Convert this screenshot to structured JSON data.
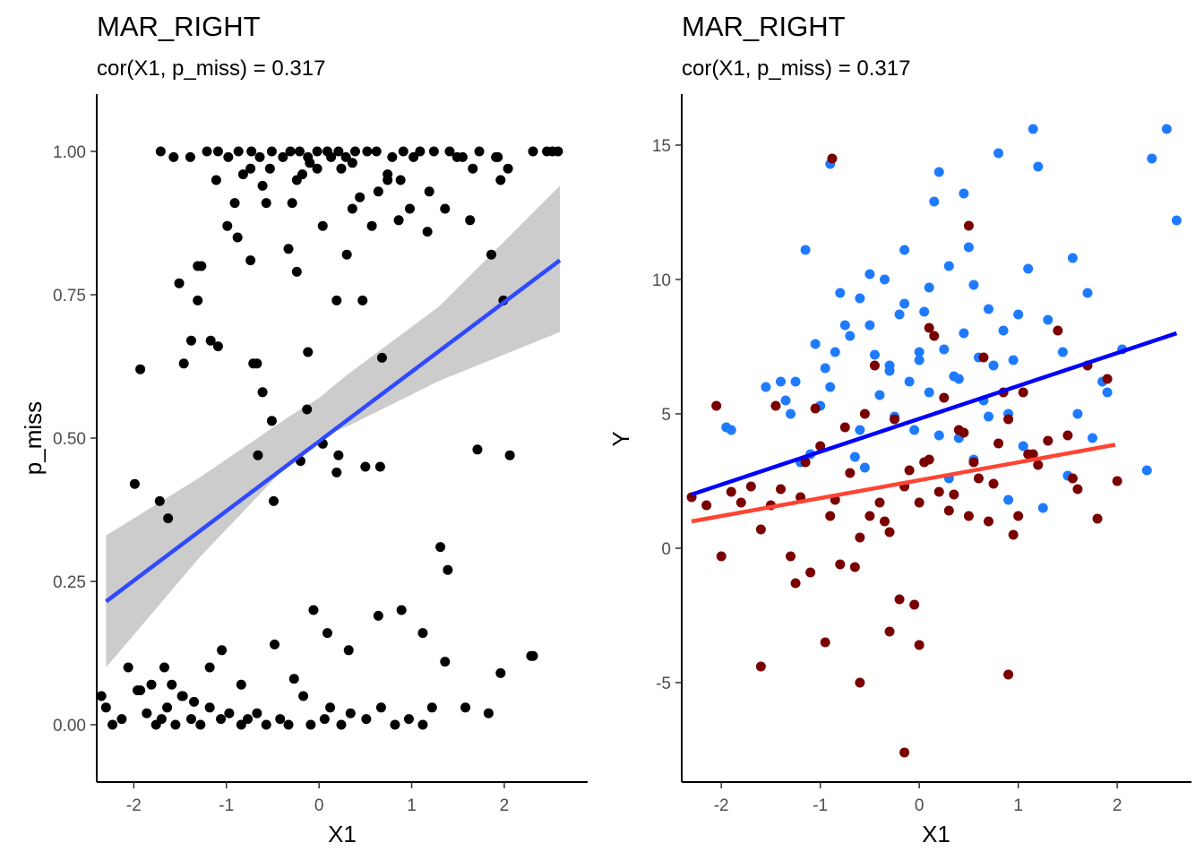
{
  "chart_data": [
    {
      "type": "scatter",
      "title": "MAR_RIGHT",
      "subtitle": "cor(X1, p_miss) = 0.317",
      "xlabel": "X1",
      "ylabel": "p_miss",
      "xlim": [
        -2.4,
        2.9
      ],
      "ylim": [
        -0.1,
        1.1
      ],
      "x_ticks": [
        -2,
        -1,
        0,
        1,
        2
      ],
      "x_tick_labels": [
        "-2",
        "-1",
        "0",
        "1",
        "2"
      ],
      "y_ticks": [
        0,
        0.25,
        0.5,
        0.75,
        1
      ],
      "y_tick_labels": [
        "0.00",
        "0.25",
        "0.50",
        "0.75",
        "1.00"
      ],
      "grid": false,
      "colors": {
        "points": "#000000",
        "fit_line": "#3049FF",
        "ribbon": "#CCCCCC"
      },
      "fit_line": {
        "x": [
          -2.3,
          2.6
        ],
        "y": [
          0.215,
          0.81
        ]
      },
      "confidence_band": {
        "x": [
          -2.3,
          -1.3,
          -0.3,
          0.0,
          0.3,
          1.3,
          2.6
        ],
        "lower": [
          0.1,
          0.29,
          0.46,
          0.5,
          0.52,
          0.6,
          0.685
        ],
        "upper": [
          0.33,
          0.43,
          0.54,
          0.57,
          0.61,
          0.73,
          0.94
        ]
      },
      "points": {
        "x": [
          -1.99,
          -1.72,
          -1.63,
          -1.93,
          -1.09,
          -0.71,
          -0.66,
          -0.61,
          -0.51,
          -0.49,
          -0.2,
          -0.13,
          0.04,
          0.19,
          0.21,
          0.5,
          0.66,
          0.68,
          1.31,
          1.39,
          1.71,
          1.86,
          1.99,
          2.06,
          2.31,
          -2.35,
          -2.3,
          -2.23,
          -2.13,
          -1.93,
          -1.86,
          -1.81,
          -1.76,
          -1.7,
          -1.64,
          -1.55,
          -1.48,
          -1.38,
          -1.28,
          -1.18,
          -1.06,
          -0.97,
          -0.84,
          -0.77,
          -0.67,
          -0.57,
          -0.42,
          -0.33,
          -0.17,
          -0.09,
          0.06,
          0.12,
          0.24,
          0.34,
          0.51,
          0.67,
          0.82,
          0.97,
          1.12,
          1.22,
          1.36,
          1.58,
          1.83,
          1.96,
          2.29,
          -2.06,
          -1.96,
          -1.67,
          -1.59,
          -1.47,
          -1.35,
          -1.18,
          -1.05,
          -0.84,
          -0.48,
          -0.27,
          -0.06,
          0.09,
          0.32,
          0.64,
          0.89,
          1.12,
          -1.51,
          -1.46,
          -1.38,
          -1.31,
          -1.27,
          -1.17,
          -0.99,
          -0.88,
          -0.74,
          -0.67,
          -0.57,
          -0.33,
          -0.29,
          -0.24,
          -0.12,
          0.04,
          0.19,
          0.3,
          0.36,
          0.47,
          0.57,
          0.74,
          0.86,
          0.98,
          1.17,
          1.36,
          1.63,
          1.96,
          2.04,
          -1.31,
          -1.11,
          -0.91,
          -0.82,
          -0.74,
          -0.61,
          -0.53,
          -0.24,
          -0.18,
          -0.1,
          -0.02,
          0.13,
          0.24,
          0.36,
          0.44,
          0.64,
          0.74,
          0.88,
          1.02,
          1.19,
          1.49,
          1.66,
          1.93,
          2.58,
          -1.71,
          -1.57,
          -1.39,
          -1.21,
          -1.09,
          -0.98,
          -0.87,
          -0.73,
          -0.64,
          -0.51,
          -0.39,
          -0.31,
          -0.21,
          -0.12,
          -0.02,
          0.09,
          0.21,
          0.29,
          0.39,
          0.52,
          0.62,
          0.79,
          0.91,
          1.09,
          1.24,
          1.41,
          1.55,
          1.73,
          1.91,
          2.31,
          2.46,
          2.52
        ],
        "y": [
          0.42,
          0.39,
          0.36,
          0.62,
          0.66,
          0.63,
          0.47,
          0.58,
          0.53,
          0.39,
          0.46,
          0.55,
          0.49,
          0.44,
          0.47,
          0.45,
          0.45,
          0.64,
          0.31,
          0.27,
          0.48,
          0.82,
          0.74,
          0.47,
          0.12,
          0.05,
          0.03,
          0.0,
          0.01,
          0.06,
          0.02,
          0.07,
          0.0,
          0.01,
          0.03,
          0.0,
          0.05,
          0.01,
          0.0,
          0.03,
          0.01,
          0.02,
          0.0,
          0.01,
          0.02,
          0.0,
          0.01,
          0.0,
          0.05,
          0.0,
          0.01,
          0.03,
          0.0,
          0.02,
          0.01,
          0.03,
          0.0,
          0.01,
          0.0,
          0.03,
          0.11,
          0.03,
          0.02,
          0.09,
          0.12,
          0.1,
          0.06,
          0.1,
          0.07,
          0.05,
          0.04,
          0.1,
          0.13,
          0.07,
          0.14,
          0.08,
          0.2,
          0.16,
          0.13,
          0.19,
          0.2,
          0.16,
          0.77,
          0.63,
          0.67,
          0.74,
          0.8,
          0.67,
          0.87,
          0.85,
          0.81,
          0.63,
          0.91,
          0.83,
          0.91,
          0.79,
          0.65,
          0.87,
          0.74,
          0.82,
          0.9,
          0.74,
          0.87,
          0.95,
          0.88,
          0.9,
          0.86,
          0.9,
          0.88,
          0.95,
          0.97,
          0.8,
          0.95,
          0.91,
          0.96,
          0.97,
          0.94,
          0.97,
          0.95,
          0.96,
          0.98,
          0.97,
          0.99,
          0.97,
          0.98,
          0.92,
          0.93,
          0.96,
          0.95,
          0.99,
          0.93,
          0.99,
          0.97,
          0.99,
          1.0,
          1.0,
          0.99,
          0.99,
          1.0,
          1.0,
          0.99,
          1.0,
          1.0,
          0.99,
          1.0,
          0.99,
          1.0,
          1.0,
          0.99,
          1.0,
          1.0,
          1.0,
          0.99,
          1.0,
          1.0,
          1.0,
          0.99,
          1.0,
          1.0,
          1.0,
          1.0,
          0.99,
          1.0,
          0.99,
          1.0,
          1.0,
          1.0
        ]
      }
    },
    {
      "type": "scatter",
      "title": "MAR_RIGHT",
      "subtitle": "cor(X1, p_miss) = 0.317",
      "xlabel": "X1",
      "ylabel": "Y",
      "xlim": [
        -2.4,
        2.75
      ],
      "ylim": [
        -8.7,
        16.9
      ],
      "x_ticks": [
        -2,
        -1,
        0,
        1,
        2
      ],
      "x_tick_labels": [
        "-2",
        "-1",
        "0",
        "1",
        "2"
      ],
      "y_ticks": [
        -5,
        0,
        5,
        10,
        15
      ],
      "y_tick_labels": [
        "-5",
        "0",
        "5",
        "10",
        "15"
      ],
      "grid": false,
      "colors": {
        "series_a": "#1E7BFF",
        "series_b": "#7A0000",
        "line_a": "#0000FF",
        "line_b": "#FF4433"
      },
      "lines": [
        {
          "color": "#0000FF",
          "x": [
            -2.3,
            2.6
          ],
          "y": [
            2.0,
            8.0
          ]
        },
        {
          "color": "#FF4433",
          "x": [
            -2.3,
            1.98
          ],
          "y": [
            1.0,
            3.85
          ]
        }
      ],
      "series": [
        {
          "color": "#1E7BFF",
          "x": [
            -1.95,
            -1.9,
            -1.55,
            -1.4,
            -1.35,
            -1.3,
            -1.25,
            -1.15,
            -1.1,
            -1.05,
            -0.95,
            -0.9,
            -0.85,
            -0.8,
            -0.75,
            -0.7,
            -0.65,
            -0.6,
            -0.55,
            -0.5,
            -0.45,
            -0.4,
            -0.35,
            -0.3,
            -0.25,
            -0.2,
            -0.15,
            -0.1,
            -0.05,
            0.0,
            0.05,
            0.1,
            0.15,
            0.2,
            0.25,
            0.3,
            0.35,
            0.4,
            0.45,
            0.5,
            0.55,
            0.6,
            0.65,
            0.7,
            0.75,
            0.8,
            0.85,
            0.9,
            0.95,
            1.0,
            1.1,
            1.15,
            1.2,
            1.3,
            1.45,
            1.5,
            1.55,
            1.7,
            1.75,
            1.9,
            2.05,
            2.3,
            2.35,
            2.5,
            2.6,
            -0.9,
            -0.15,
            0.1,
            0.45,
            -1.2,
            0.3,
            0.7,
            1.05,
            -0.6,
            0.0,
            0.55,
            1.25,
            -1.0,
            -0.3,
            0.2,
            0.9,
            1.6,
            -0.5,
            0.4,
            1.85
          ],
          "y": [
            4.5,
            4.4,
            6.0,
            6.2,
            5.5,
            5.0,
            6.2,
            11.1,
            3.5,
            7.6,
            6.7,
            14.3,
            7.3,
            9.5,
            8.3,
            7.9,
            3.4,
            9.3,
            3.0,
            10.2,
            7.2,
            5.7,
            10.0,
            6.8,
            4.9,
            8.7,
            9.1,
            6.2,
            4.4,
            7.0,
            8.8,
            5.8,
            12.9,
            14.0,
            7.4,
            10.5,
            6.4,
            4.1,
            13.2,
            11.2,
            9.8,
            7.1,
            5.5,
            8.9,
            6.8,
            14.7,
            8.1,
            5.0,
            7.0,
            8.7,
            10.4,
            15.6,
            14.2,
            8.5,
            7.3,
            2.7,
            10.8,
            9.5,
            4.1,
            5.8,
            7.4,
            2.9,
            14.5,
            15.6,
            12.2,
            6.0,
            11.1,
            9.7,
            8.0,
            3.2,
            2.6,
            4.9,
            3.8,
            4.4,
            7.3,
            3.3,
            1.5,
            5.3,
            6.6,
            4.2,
            1.8,
            5.0,
            8.3,
            6.3,
            6.2
          ]
        },
        {
          "color": "#7A0000",
          "x": [
            -2.3,
            -2.15,
            -2.05,
            -2.0,
            -1.9,
            -1.8,
            -1.7,
            -1.6,
            -1.5,
            -1.4,
            -1.3,
            -1.2,
            -1.1,
            -1.0,
            -0.9,
            -0.8,
            -0.7,
            -0.6,
            -0.5,
            -0.4,
            -0.3,
            -0.2,
            -0.1,
            0.0,
            0.1,
            0.2,
            0.3,
            0.4,
            0.5,
            0.6,
            0.7,
            0.8,
            0.9,
            1.0,
            1.1,
            1.2,
            1.3,
            1.4,
            1.5,
            1.6,
            1.7,
            1.8,
            1.9,
            2.0,
            -1.45,
            -1.25,
            -1.15,
            -1.05,
            -0.95,
            -0.85,
            -0.75,
            -0.65,
            -0.55,
            -0.45,
            -0.35,
            -0.25,
            -0.15,
            -0.05,
            0.05,
            0.15,
            0.25,
            0.35,
            0.45,
            0.55,
            0.65,
            0.75,
            0.85,
            0.95,
            1.05,
            1.15,
            -0.88,
            -0.15,
            0.5,
            -1.6,
            0.0,
            0.9,
            -0.6,
            0.1,
            -0.3,
            1.55
          ],
          "y": [
            1.9,
            1.6,
            5.3,
            -0.3,
            2.1,
            1.7,
            2.3,
            0.7,
            1.6,
            2.2,
            -0.3,
            1.9,
            -0.9,
            3.8,
            1.2,
            -0.6,
            2.8,
            0.4,
            1.2,
            1.7,
            0.6,
            -1.9,
            2.9,
            1.7,
            3.3,
            2.1,
            1.4,
            4.4,
            1.2,
            2.6,
            1.0,
            3.9,
            4.8,
            1.2,
            3.5,
            3.1,
            4.0,
            8.1,
            4.2,
            2.2,
            6.8,
            1.1,
            6.3,
            2.5,
            5.3,
            -1.3,
            3.2,
            5.2,
            -3.5,
            1.8,
            4.5,
            -0.7,
            5.0,
            6.8,
            1.0,
            4.8,
            2.3,
            -2.1,
            3.2,
            7.9,
            5.6,
            2.0,
            4.3,
            3.2,
            7.1,
            2.4,
            5.8,
            0.5,
            5.8,
            3.5,
            14.5,
            -7.6,
            12.0,
            -4.4,
            -3.6,
            -4.7,
            -5.0,
            8.2,
            -3.1,
            2.6
          ]
        }
      ]
    }
  ]
}
